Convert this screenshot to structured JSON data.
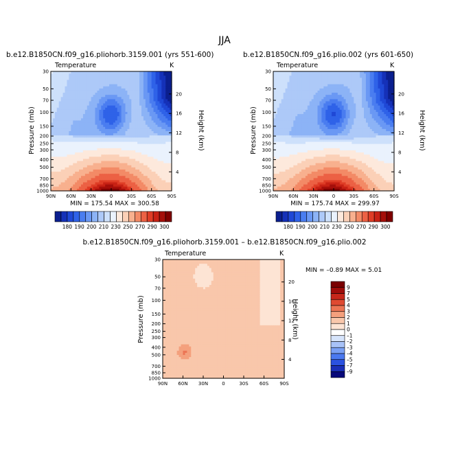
{
  "figure_title": "JJA",
  "colors": {
    "temp_palette": [
      "#0b1f8f",
      "#1531b8",
      "#1f48d6",
      "#2f62e8",
      "#4a7df0",
      "#6a98f4",
      "#8cb3f6",
      "#adc9f8",
      "#cde0fb",
      "#eaf2fd",
      "#fde9dc",
      "#fbd0b7",
      "#f8b08e",
      "#f38a66",
      "#ec6144",
      "#df3d26",
      "#c82215",
      "#a50f0a",
      "#7f0000"
    ],
    "diff_palette": [
      "#08087a",
      "#1a2fb8",
      "#2b52e0",
      "#4a79f0",
      "#7aa0f4",
      "#a8c2f7",
      "#d6e4fb",
      "#ffffff",
      "#fde4d4",
      "#f9c7ab",
      "#f4a07d",
      "#ec7554",
      "#df4a31",
      "#c6271a",
      "#9e0d0a",
      "#7a0000"
    ]
  },
  "chart_data": [
    {
      "type": "contour",
      "title": "b.e12.B1850CN.f09_g16.pliohorb.3159.001 (yrs 551-600)",
      "variable_label": "Temperature",
      "units_label": "K",
      "ylabel": "Pressure (mb)",
      "y2label": "Height (km)",
      "x_ticks": [
        "90N",
        "60N",
        "30N",
        "0",
        "30S",
        "60S",
        "90S"
      ],
      "y_ticks": [
        "30",
        "50",
        "70",
        "100",
        "150",
        "200",
        "250",
        "300",
        "400",
        "500",
        "700",
        "850",
        "1000"
      ],
      "y2_ticks": [
        "20",
        "16",
        "12",
        "8",
        "4"
      ],
      "stats_text": "MIN = 175.54   MAX = 300.58",
      "colorbar_labels": [
        "180",
        "190",
        "200",
        "210",
        "230",
        "250",
        "270",
        "290",
        "300"
      ]
    },
    {
      "type": "contour",
      "title": "b.e12.B1850CN.f09_g16.plio.002 (yrs 601-650)",
      "variable_label": "Temperature",
      "units_label": "K",
      "ylabel": "Pressure (mb)",
      "y2label": "Height (km)",
      "x_ticks": [
        "90N",
        "60N",
        "30N",
        "0",
        "30S",
        "60S",
        "90S"
      ],
      "y_ticks": [
        "30",
        "50",
        "70",
        "100",
        "150",
        "200",
        "250",
        "300",
        "400",
        "500",
        "700",
        "850",
        "1000"
      ],
      "y2_ticks": [
        "20",
        "16",
        "12",
        "8",
        "4"
      ],
      "stats_text": "MIN = 175.74   MAX = 299.97",
      "colorbar_labels": [
        "180",
        "190",
        "200",
        "210",
        "230",
        "250",
        "270",
        "290",
        "300"
      ]
    },
    {
      "type": "contour",
      "title": "b.e12.B1850CN.f09_g16.pliohorb.3159.001 – b.e12.B1850CN.f09_g16.plio.002",
      "variable_label": "Temperature",
      "units_label": "K",
      "ylabel": "Pressure (mb)",
      "y2label": "Height (km)",
      "x_ticks": [
        "90N",
        "60N",
        "30N",
        "0",
        "30S",
        "60S",
        "90S"
      ],
      "y_ticks": [
        "30",
        "50",
        "70",
        "100",
        "150",
        "200",
        "250",
        "300",
        "400",
        "500",
        "700",
        "850",
        "1000"
      ],
      "y2_ticks": [
        "20",
        "16",
        "12",
        "8",
        "4"
      ],
      "stats_text": "MIN =  –0.89   MAX =    5.01",
      "colorbar_labels": [
        "9",
        "7",
        "5",
        "4",
        "3",
        "2",
        "1",
        "0",
        "–1",
        "–2",
        "–3",
        "–4",
        "–5",
        "–7",
        "–9"
      ]
    }
  ]
}
